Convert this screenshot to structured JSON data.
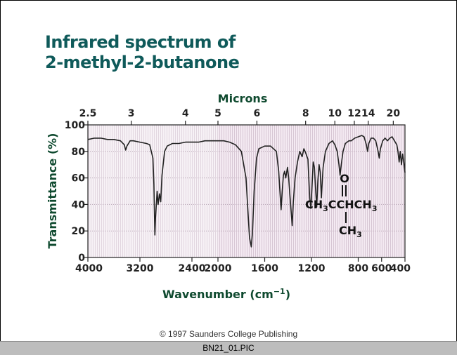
{
  "title_line1": "Infrared spectrum of",
  "title_line2": "2-methyl-2-butanone",
  "copyright": "© 1997 Saunders College Publishing",
  "filename": "BN21_01.PIC",
  "structure": {
    "carbonyl_o": "O",
    "main_prefix": "CH",
    "main_sub1": "3",
    "main_mid": "CCHCH",
    "main_sub2": "3",
    "branch_prefix": "CH",
    "branch_sub": "3"
  },
  "colors": {
    "title": "#0f5a5a",
    "axis_title": "#0f4a2f",
    "plot_background": "#f3e9f1",
    "trace": "#222222"
  },
  "chart_data": {
    "type": "line",
    "title": "Infrared spectrum of 2-methyl-2-butanone",
    "xlabel_prefix": "Wavenumber (cm",
    "xlabel_exp": "−1",
    "xlabel_suffix": ")",
    "ylabel": "Transmittance (%)",
    "top_axis_label": "Microns",
    "ylim": [
      0,
      100
    ],
    "wavenumber_ticks": [
      "4000",
      "3200",
      "2400",
      "2000",
      "1600",
      "1200",
      "800",
      "600",
      "400"
    ],
    "y_ticks": [
      "100",
      "80",
      "60",
      "40",
      "20",
      "0"
    ],
    "micron_ticks": [
      "2.5",
      "3",
      "4",
      "5",
      "6",
      "8",
      "10",
      "12",
      "14",
      "20"
    ],
    "grid": true,
    "series": [
      {
        "points": [
          [
            4000,
            89
          ],
          [
            3900,
            90
          ],
          [
            3800,
            90
          ],
          [
            3700,
            89
          ],
          [
            3600,
            89
          ],
          [
            3500,
            88
          ],
          [
            3440,
            85
          ],
          [
            3420,
            81
          ],
          [
            3400,
            84
          ],
          [
            3350,
            88
          ],
          [
            3300,
            88
          ],
          [
            3200,
            87
          ],
          [
            3100,
            86
          ],
          [
            3050,
            85
          ],
          [
            3000,
            75
          ],
          [
            2985,
            55
          ],
          [
            2975,
            30
          ],
          [
            2970,
            17
          ],
          [
            2960,
            30
          ],
          [
            2945,
            42
          ],
          [
            2935,
            50
          ],
          [
            2920,
            40
          ],
          [
            2900,
            48
          ],
          [
            2880,
            42
          ],
          [
            2860,
            62
          ],
          [
            2820,
            80
          ],
          [
            2780,
            84
          ],
          [
            2700,
            86
          ],
          [
            2600,
            86
          ],
          [
            2500,
            87
          ],
          [
            2400,
            87
          ],
          [
            2300,
            87
          ],
          [
            2200,
            88
          ],
          [
            2100,
            88
          ],
          [
            2000,
            88
          ],
          [
            1950,
            88
          ],
          [
            1900,
            87
          ],
          [
            1850,
            85
          ],
          [
            1800,
            80
          ],
          [
            1760,
            60
          ],
          [
            1740,
            30
          ],
          [
            1730,
            15
          ],
          [
            1715,
            8
          ],
          [
            1705,
            18
          ],
          [
            1690,
            50
          ],
          [
            1670,
            75
          ],
          [
            1650,
            82
          ],
          [
            1600,
            84
          ],
          [
            1550,
            84
          ],
          [
            1500,
            80
          ],
          [
            1480,
            65
          ],
          [
            1470,
            50
          ],
          [
            1460,
            36
          ],
          [
            1450,
            50
          ],
          [
            1440,
            62
          ],
          [
            1430,
            65
          ],
          [
            1420,
            60
          ],
          [
            1405,
            68
          ],
          [
            1395,
            60
          ],
          [
            1385,
            48
          ],
          [
            1375,
            36
          ],
          [
            1365,
            24
          ],
          [
            1355,
            42
          ],
          [
            1340,
            60
          ],
          [
            1320,
            72
          ],
          [
            1300,
            80
          ],
          [
            1280,
            76
          ],
          [
            1265,
            82
          ],
          [
            1250,
            79
          ],
          [
            1230,
            74
          ],
          [
            1215,
            45
          ],
          [
            1205,
            37
          ],
          [
            1195,
            54
          ],
          [
            1185,
            72
          ],
          [
            1175,
            68
          ],
          [
            1165,
            52
          ],
          [
            1155,
            38
          ],
          [
            1145,
            58
          ],
          [
            1135,
            70
          ],
          [
            1125,
            64
          ],
          [
            1115,
            45
          ],
          [
            1108,
            57
          ],
          [
            1100,
            68
          ],
          [
            1080,
            80
          ],
          [
            1050,
            86
          ],
          [
            1020,
            88
          ],
          [
            1000,
            85
          ],
          [
            980,
            80
          ],
          [
            965,
            70
          ],
          [
            955,
            62
          ],
          [
            945,
            70
          ],
          [
            930,
            80
          ],
          [
            910,
            86
          ],
          [
            880,
            88
          ],
          [
            860,
            88
          ],
          [
            830,
            90
          ],
          [
            800,
            91
          ],
          [
            770,
            92
          ],
          [
            750,
            91
          ],
          [
            730,
            85
          ],
          [
            720,
            80
          ],
          [
            710,
            86
          ],
          [
            690,
            90
          ],
          [
            670,
            90
          ],
          [
            650,
            88
          ],
          [
            630,
            80
          ],
          [
            620,
            75
          ],
          [
            610,
            82
          ],
          [
            590,
            88
          ],
          [
            570,
            90
          ],
          [
            550,
            88
          ],
          [
            530,
            90
          ],
          [
            510,
            91
          ],
          [
            490,
            88
          ],
          [
            470,
            85
          ],
          [
            460,
            80
          ],
          [
            450,
            72
          ],
          [
            440,
            80
          ],
          [
            430,
            70
          ],
          [
            420,
            78
          ],
          [
            410,
            72
          ],
          [
            400,
            64
          ]
        ]
      }
    ]
  }
}
